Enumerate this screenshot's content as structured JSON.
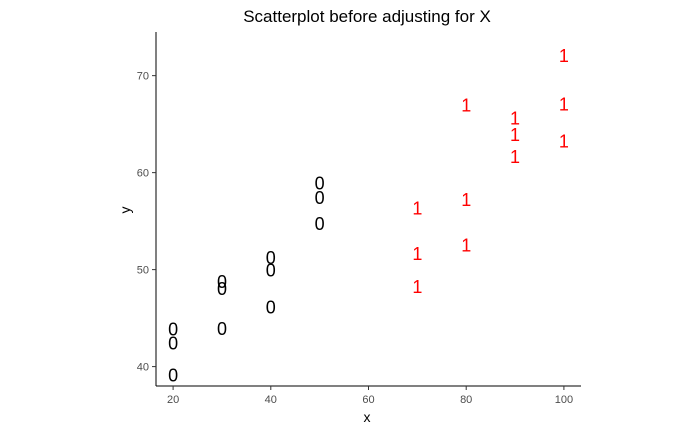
{
  "chart_data": {
    "type": "scatter",
    "title": "Scatterplot before adjusting for X",
    "xlabel": "x",
    "ylabel": "y",
    "xlim": [
      16.5,
      103.5
    ],
    "ylim": [
      38,
      74.5
    ],
    "xticks": [
      20,
      40,
      60,
      80,
      100
    ],
    "yticks": [
      40,
      50,
      60,
      70
    ],
    "grid": false,
    "legend": "none",
    "series": [
      {
        "label": "0",
        "color": "#000000",
        "points": [
          {
            "x": 20,
            "y": 43.8
          },
          {
            "x": 20,
            "y": 42.4
          },
          {
            "x": 20,
            "y": 39.1
          },
          {
            "x": 30,
            "y": 48.7
          },
          {
            "x": 30,
            "y": 48.0
          },
          {
            "x": 30,
            "y": 43.9
          },
          {
            "x": 40,
            "y": 51.2
          },
          {
            "x": 40,
            "y": 49.9
          },
          {
            "x": 40,
            "y": 46.1
          },
          {
            "x": 50,
            "y": 58.9
          },
          {
            "x": 50,
            "y": 57.4
          },
          {
            "x": 50,
            "y": 54.7
          }
        ]
      },
      {
        "label": "1",
        "color": "#ff0000",
        "points": [
          {
            "x": 70,
            "y": 56.3
          },
          {
            "x": 70,
            "y": 51.6
          },
          {
            "x": 70,
            "y": 48.2
          },
          {
            "x": 80,
            "y": 57.2
          },
          {
            "x": 80,
            "y": 52.5
          },
          {
            "x": 80,
            "y": 66.9
          },
          {
            "x": 90,
            "y": 65.6
          },
          {
            "x": 90,
            "y": 63.9
          },
          {
            "x": 90,
            "y": 61.6
          },
          {
            "x": 100,
            "y": 72.0
          },
          {
            "x": 100,
            "y": 67.0
          },
          {
            "x": 100,
            "y": 63.2
          }
        ]
      }
    ]
  }
}
